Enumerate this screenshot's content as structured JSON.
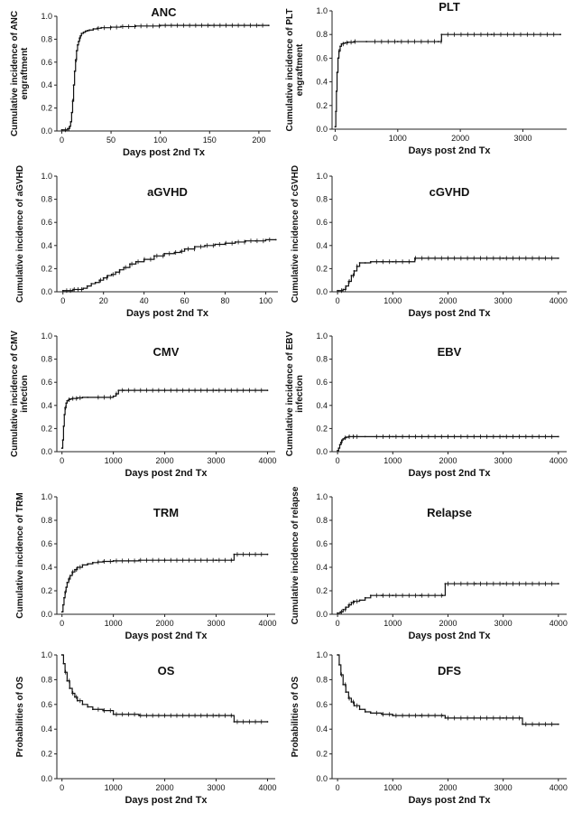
{
  "chart_data": [
    {
      "type": "line",
      "title": "ANC",
      "xlabel": "Days post 2nd Tx",
      "ylabel": [
        "Cumulative incidence of ANC",
        "engraftment"
      ],
      "xlim": [
        -5,
        212
      ],
      "ylim": [
        0,
        1
      ],
      "xticks": [
        0,
        50,
        100,
        150,
        200
      ],
      "yticks": [
        0.0,
        0.2,
        0.4,
        0.6,
        0.8,
        1.0
      ],
      "grid": false,
      "series": [
        {
          "x": [
            0,
            6,
            8,
            9,
            10,
            11,
            12,
            13,
            14,
            15,
            16,
            17,
            18,
            19,
            20,
            22,
            24,
            26,
            28,
            32,
            36,
            40,
            50,
            60,
            75,
            100,
            150,
            200,
            210
          ],
          "y": [
            0.01,
            0.02,
            0.04,
            0.08,
            0.16,
            0.26,
            0.4,
            0.52,
            0.62,
            0.7,
            0.75,
            0.78,
            0.81,
            0.83,
            0.85,
            0.86,
            0.87,
            0.875,
            0.88,
            0.89,
            0.895,
            0.9,
            0.905,
            0.91,
            0.915,
            0.92,
            0.92,
            0.92,
            0.92
          ]
        }
      ]
    },
    {
      "type": "line",
      "title": "PLT",
      "xlabel": "Days post 2nd Tx",
      "ylabel": [
        "Cumulative incidence of PLT",
        "engraftment"
      ],
      "xlim": [
        -50,
        3700
      ],
      "ylim": [
        0,
        1
      ],
      "xticks": [
        0,
        1000,
        2000,
        3000
      ],
      "yticks": [
        0.0,
        0.2,
        0.4,
        0.6,
        0.8,
        1.0
      ],
      "grid": false,
      "series": [
        {
          "x": [
            0,
            10,
            20,
            30,
            45,
            60,
            80,
            100,
            130,
            160,
            200,
            300,
            500,
            1000,
            1650,
            1700,
            2500,
            3600
          ],
          "y": [
            0.02,
            0.15,
            0.32,
            0.48,
            0.6,
            0.66,
            0.7,
            0.72,
            0.725,
            0.73,
            0.735,
            0.74,
            0.74,
            0.74,
            0.74,
            0.8,
            0.8,
            0.8
          ]
        }
      ]
    },
    {
      "type": "line",
      "title": "aGVHD",
      "xlabel": "Days post 2nd Tx",
      "ylabel": [
        "Cumulative incidence of aGVHD"
      ],
      "xlim": [
        -3,
        106
      ],
      "ylim": [
        0,
        1
      ],
      "xticks": [
        0,
        20,
        40,
        60,
        80,
        100
      ],
      "yticks": [
        0.0,
        0.2,
        0.4,
        0.6,
        0.8,
        1.0
      ],
      "grid": false,
      "series": [
        {
          "x": [
            0,
            5,
            10,
            12,
            14,
            16,
            18,
            20,
            22,
            24,
            26,
            28,
            30,
            33,
            36,
            40,
            45,
            50,
            55,
            58,
            60,
            65,
            70,
            75,
            80,
            85,
            90,
            95,
            100,
            105
          ],
          "y": [
            0.01,
            0.02,
            0.03,
            0.05,
            0.07,
            0.08,
            0.1,
            0.12,
            0.14,
            0.15,
            0.17,
            0.19,
            0.21,
            0.24,
            0.26,
            0.28,
            0.31,
            0.33,
            0.34,
            0.35,
            0.37,
            0.39,
            0.4,
            0.41,
            0.42,
            0.43,
            0.44,
            0.44,
            0.45,
            0.45
          ]
        }
      ]
    },
    {
      "type": "line",
      "title": "cGVHD",
      "xlabel": "Days post 2nd Tx",
      "ylabel": [
        "Cumulative incidence of cGVHD"
      ],
      "xlim": [
        -100,
        4150
      ],
      "ylim": [
        0,
        1
      ],
      "xticks": [
        0,
        1000,
        2000,
        3000,
        4000
      ],
      "yticks": [
        0.0,
        0.2,
        0.4,
        0.6,
        0.8,
        1.0
      ],
      "grid": false,
      "series": [
        {
          "x": [
            0,
            100,
            150,
            200,
            250,
            300,
            350,
            400,
            500,
            600,
            800,
            1000,
            1300,
            1400,
            2000,
            3000,
            4000
          ],
          "y": [
            0.01,
            0.02,
            0.05,
            0.09,
            0.14,
            0.18,
            0.22,
            0.25,
            0.25,
            0.26,
            0.26,
            0.26,
            0.26,
            0.29,
            0.29,
            0.29,
            0.29
          ]
        }
      ]
    },
    {
      "type": "line",
      "title": "CMV",
      "xlabel": "Days post 2nd Tx",
      "ylabel": [
        "Cumulative incidence of CMV",
        "infection"
      ],
      "xlim": [
        -100,
        4150
      ],
      "ylim": [
        0,
        1
      ],
      "xticks": [
        0,
        1000,
        2000,
        3000,
        4000
      ],
      "yticks": [
        0.0,
        0.2,
        0.4,
        0.6,
        0.8,
        1.0
      ],
      "grid": false,
      "series": [
        {
          "x": [
            0,
            15,
            30,
            45,
            60,
            80,
            100,
            130,
            160,
            200,
            300,
            400,
            500,
            700,
            1000,
            1050,
            1100,
            1200,
            2000,
            3000,
            4000
          ],
          "y": [
            0.03,
            0.1,
            0.22,
            0.32,
            0.38,
            0.42,
            0.44,
            0.45,
            0.455,
            0.46,
            0.465,
            0.47,
            0.47,
            0.47,
            0.48,
            0.5,
            0.53,
            0.53,
            0.53,
            0.53,
            0.53
          ]
        }
      ]
    },
    {
      "type": "line",
      "title": "EBV",
      "xlabel": "Days post 2nd Tx",
      "ylabel": [
        "Cumulative incidence of EBV",
        "infection"
      ],
      "xlim": [
        -100,
        4150
      ],
      "ylim": [
        0,
        1
      ],
      "xticks": [
        0,
        1000,
        2000,
        3000,
        4000
      ],
      "yticks": [
        0.0,
        0.2,
        0.4,
        0.6,
        0.8,
        1.0
      ],
      "grid": false,
      "series": [
        {
          "x": [
            0,
            20,
            40,
            60,
            80,
            100,
            130,
            160,
            200,
            300,
            500,
            1000,
            2000,
            3000,
            4000
          ],
          "y": [
            0.01,
            0.03,
            0.06,
            0.08,
            0.1,
            0.11,
            0.12,
            0.125,
            0.13,
            0.13,
            0.13,
            0.13,
            0.13,
            0.13,
            0.13
          ]
        }
      ]
    },
    {
      "type": "line",
      "title": "TRM",
      "xlabel": "Days post 2nd Tx",
      "ylabel": [
        "Cumulative incidence of TRM"
      ],
      "xlim": [
        -100,
        4150
      ],
      "ylim": [
        0,
        1
      ],
      "xticks": [
        0,
        1000,
        2000,
        3000,
        4000
      ],
      "yticks": [
        0.0,
        0.2,
        0.4,
        0.6,
        0.8,
        1.0
      ],
      "grid": false,
      "series": [
        {
          "x": [
            0,
            20,
            40,
            60,
            80,
            100,
            130,
            160,
            200,
            250,
            300,
            400,
            500,
            600,
            700,
            800,
            1000,
            1500,
            2000,
            3000,
            3300,
            3350,
            4000
          ],
          "y": [
            0.02,
            0.08,
            0.14,
            0.19,
            0.23,
            0.27,
            0.3,
            0.33,
            0.36,
            0.38,
            0.4,
            0.42,
            0.43,
            0.44,
            0.445,
            0.45,
            0.455,
            0.46,
            0.46,
            0.46,
            0.46,
            0.51,
            0.51
          ]
        }
      ]
    },
    {
      "type": "line",
      "title": "Relapse",
      "xlabel": "Days post 2nd Tx",
      "ylabel": [
        "Cumulative incidence of relapse"
      ],
      "xlim": [
        -100,
        4150
      ],
      "ylim": [
        0,
        1
      ],
      "xticks": [
        0,
        1000,
        2000,
        3000,
        4000
      ],
      "yticks": [
        0.0,
        0.2,
        0.4,
        0.6,
        0.8,
        1.0
      ],
      "grid": false,
      "series": [
        {
          "x": [
            0,
            50,
            100,
            150,
            200,
            250,
            300,
            400,
            500,
            600,
            800,
            1000,
            1500,
            1900,
            1950,
            2500,
            3000,
            4000
          ],
          "y": [
            0.01,
            0.02,
            0.04,
            0.06,
            0.08,
            0.1,
            0.11,
            0.12,
            0.14,
            0.16,
            0.16,
            0.16,
            0.16,
            0.16,
            0.26,
            0.26,
            0.26,
            0.26
          ]
        }
      ]
    },
    {
      "type": "line",
      "title": "OS",
      "xlabel": "Days post 2nd Tx",
      "ylabel": [
        "Probabilities of OS"
      ],
      "xlim": [
        -100,
        4150
      ],
      "ylim": [
        0,
        1
      ],
      "xticks": [
        0,
        1000,
        2000,
        3000,
        4000
      ],
      "yticks": [
        0.0,
        0.2,
        0.4,
        0.6,
        0.8,
        1.0
      ],
      "grid": false,
      "series": [
        {
          "x": [
            0,
            30,
            60,
            100,
            150,
            200,
            250,
            300,
            400,
            500,
            600,
            800,
            1000,
            1500,
            2000,
            3000,
            3300,
            3350,
            4000
          ],
          "y": [
            1.0,
            0.93,
            0.86,
            0.79,
            0.73,
            0.69,
            0.66,
            0.63,
            0.6,
            0.58,
            0.56,
            0.55,
            0.52,
            0.51,
            0.51,
            0.51,
            0.51,
            0.46,
            0.46
          ]
        }
      ]
    },
    {
      "type": "line",
      "title": "DFS",
      "xlabel": "Days post 2nd Tx",
      "ylabel": [
        "Probabilities of OS"
      ],
      "xlim": [
        -100,
        4150
      ],
      "ylim": [
        0,
        1
      ],
      "xticks": [
        0,
        1000,
        2000,
        3000,
        4000
      ],
      "yticks": [
        0.0,
        0.2,
        0.4,
        0.6,
        0.8,
        1.0
      ],
      "grid": false,
      "series": [
        {
          "x": [
            0,
            30,
            60,
            100,
            150,
            200,
            250,
            300,
            400,
            500,
            600,
            800,
            1000,
            1500,
            1900,
            1950,
            3000,
            3300,
            3350,
            4000
          ],
          "y": [
            1.0,
            0.92,
            0.84,
            0.76,
            0.7,
            0.65,
            0.62,
            0.59,
            0.56,
            0.54,
            0.53,
            0.52,
            0.51,
            0.51,
            0.51,
            0.49,
            0.49,
            0.49,
            0.44,
            0.44
          ]
        }
      ]
    }
  ]
}
